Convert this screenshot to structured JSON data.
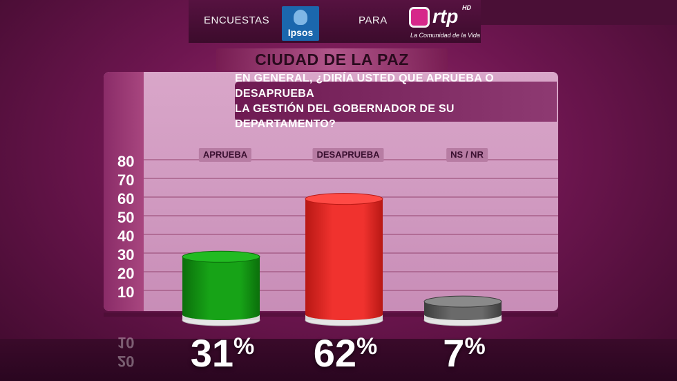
{
  "header": {
    "left_text": "ENCUESTAS",
    "ipsos_label": "Ipsos",
    "middle_text": "PARA",
    "rtp_label": "rtp",
    "rtp_hd": "HD",
    "rtp_tagline": "La Comunidad de la Vida"
  },
  "city_title": "CIUDAD DE LA PAZ",
  "question": {
    "line1": "EN GENERAL, ¿DIRÍA USTED QUE APRUEBA O DESAPRUEBA",
    "line2": "LA GESTIÓN DEL GOBERNADOR DE SU DEPARTAMENTO?"
  },
  "colors": {
    "aprueba": "#17a317",
    "desaprueba": "#f0322e",
    "nsnr": "#6a6a6a"
  },
  "chart_data": {
    "type": "bar",
    "title": "EN GENERAL, ¿DIRÍA USTED QUE APRUEBA O DESAPRUEBA LA GESTIÓN DEL GOBERNADOR DE SU DEPARTAMENTO?",
    "categories": [
      "APRUEBA",
      "DESAPRUEBA",
      "NS / NR"
    ],
    "values": [
      31,
      62,
      7
    ],
    "value_labels": [
      "31",
      "62",
      "7"
    ],
    "value_suffix": "%",
    "yticks": [
      "10",
      "20",
      "30",
      "40",
      "50",
      "60",
      "70",
      "80"
    ],
    "ylim": [
      0,
      80
    ],
    "grid": true,
    "reflected_ticks": [
      "10",
      "20"
    ]
  }
}
